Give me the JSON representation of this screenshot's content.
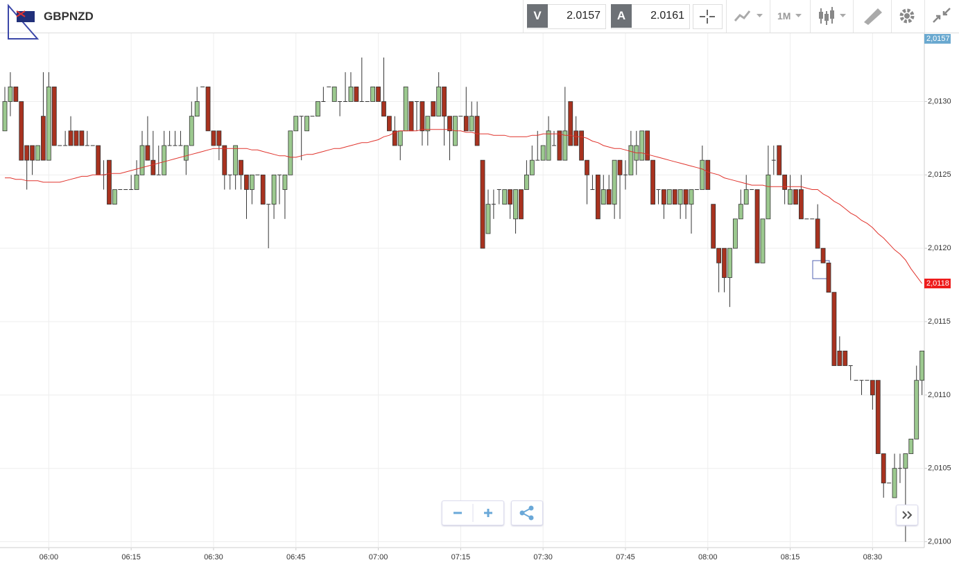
{
  "header": {
    "symbol": "GBPNZD",
    "bid_label": "V",
    "bid": "2.0157",
    "ask_label": "A",
    "ask": "2.0161",
    "timeframe": "1M"
  },
  "chart_data": {
    "type": "candlestick",
    "categories": [
      null,
      null,
      null,
      null,
      null,
      null,
      null,
      null,
      "06:00",
      null,
      null,
      null,
      null,
      null,
      null,
      null,
      null,
      null,
      null,
      null,
      null,
      null,
      null,
      "06:15",
      null,
      null,
      null,
      null,
      null,
      null,
      null,
      null,
      null,
      null,
      null,
      null,
      null,
      null,
      "06:30",
      null,
      null,
      null,
      null,
      null,
      null,
      null,
      null,
      null,
      null,
      null,
      null,
      null,
      null,
      "06:45",
      null,
      null,
      null,
      null,
      null,
      null,
      null,
      null,
      null,
      null,
      null,
      null,
      null,
      null,
      "07:00",
      null,
      null,
      null,
      null,
      null,
      null,
      null,
      null,
      null,
      null,
      null,
      null,
      null,
      null,
      "07:15",
      null,
      null,
      null,
      null,
      null,
      null,
      null,
      null,
      null,
      null,
      null,
      null,
      null,
      null,
      "07:30",
      null,
      null,
      null,
      null,
      null,
      null,
      null,
      null,
      null,
      null,
      null,
      null,
      null,
      null,
      "07:45",
      null,
      null,
      null,
      null,
      null,
      null,
      null,
      null,
      null,
      null,
      null,
      null,
      null,
      null,
      "08:00",
      null,
      null,
      null,
      null,
      null,
      null,
      null,
      null,
      null,
      null,
      null,
      null,
      null,
      null,
      "08:15",
      null,
      null,
      null,
      null,
      null,
      null,
      null,
      null,
      null,
      null,
      null,
      null,
      null,
      null,
      "08:30",
      null,
      null,
      null,
      null,
      null,
      null,
      null,
      null,
      null
    ],
    "ohlc": [
      [
        2.0128,
        2.0131,
        2.0128,
        2.013
      ],
      [
        2.013,
        2.0132,
        2.0129,
        2.0131
      ],
      [
        2.0131,
        2.0131,
        2.013,
        2.013
      ],
      [
        2.013,
        2.013,
        2.0126,
        2.0126
      ],
      [
        2.0127,
        2.0127,
        2.0124,
        2.0126
      ],
      [
        2.0127,
        2.0127,
        2.0125,
        2.0126
      ],
      [
        2.0126,
        2.0127,
        2.0126,
        2.0127
      ],
      [
        2.0129,
        2.0132,
        2.0126,
        2.0126
      ],
      [
        2.0126,
        2.0132,
        2.0126,
        2.0131
      ],
      [
        2.0131,
        2.0131,
        2.0127,
        2.0127
      ],
      [
        2.0127,
        2.0127,
        2.0127,
        2.0127
      ],
      [
        2.0127,
        2.0128,
        2.0127,
        2.0127
      ],
      [
        2.0128,
        2.0129,
        2.0127,
        2.0127
      ],
      [
        2.0128,
        2.0128,
        2.0127,
        2.0127
      ],
      [
        2.0128,
        2.0128,
        2.0127,
        2.0127
      ],
      [
        2.0127,
        2.0128,
        2.0127,
        2.0127
      ],
      [
        2.0127,
        2.0127,
        2.0127,
        2.0127
      ],
      [
        2.0127,
        2.0127,
        2.0125,
        2.0125
      ],
      [
        2.0125,
        2.0126,
        2.0124,
        2.0125
      ],
      [
        2.0126,
        2.0126,
        2.0123,
        2.0123
      ],
      [
        2.0123,
        2.0124,
        2.0123,
        2.0124
      ],
      [
        2.0124,
        2.0124,
        2.0124,
        2.0124
      ],
      [
        2.0124,
        2.0124,
        2.0124,
        2.0124
      ],
      [
        2.0124,
        2.0125,
        2.0124,
        2.0124
      ],
      [
        2.0124,
        2.0126,
        2.0124,
        2.0125
      ],
      [
        2.0125,
        2.0128,
        2.0125,
        2.0127
      ],
      [
        2.0127,
        2.0129,
        2.0126,
        2.0126
      ],
      [
        2.0126,
        2.0128,
        2.0125,
        2.0125
      ],
      [
        2.0125,
        2.0127,
        2.0125,
        2.0125
      ],
      [
        2.0125,
        2.0128,
        2.0125,
        2.0127
      ],
      [
        2.0127,
        2.0128,
        2.0127,
        2.0127
      ],
      [
        2.0127,
        2.0128,
        2.0127,
        2.0127
      ],
      [
        2.0127,
        2.0128,
        2.0127,
        2.0127
      ],
      [
        2.0126,
        2.0127,
        2.0125,
        2.0127
      ],
      [
        2.0127,
        2.013,
        2.0127,
        2.0129
      ],
      [
        2.0129,
        2.0131,
        2.0129,
        2.013
      ],
      [
        2.0131,
        2.0131,
        2.0131,
        2.0131
      ],
      [
        2.0131,
        2.0131,
        2.0128,
        2.0128
      ],
      [
        2.0128,
        2.0128,
        2.0127,
        2.0127
      ],
      [
        2.0128,
        2.0128,
        2.0126,
        2.0127
      ],
      [
        2.0127,
        2.0127,
        2.0124,
        2.0125
      ],
      [
        2.0125,
        2.0125,
        2.0124,
        2.0125
      ],
      [
        2.0125,
        2.0127,
        2.0124,
        2.0127
      ],
      [
        2.0126,
        2.0126,
        2.0124,
        2.0125
      ],
      [
        2.0125,
        2.0125,
        2.0122,
        2.0124
      ],
      [
        2.0124,
        2.0125,
        2.0123,
        2.0125
      ],
      [
        2.0125,
        2.0125,
        2.0125,
        2.0125
      ],
      [
        2.0125,
        2.0125,
        2.0123,
        2.0123
      ],
      [
        2.0123,
        2.0123,
        2.012,
        2.0123
      ],
      [
        2.0123,
        2.0125,
        2.0122,
        2.0125
      ],
      [
        2.0125,
        2.0125,
        2.0123,
        2.0125
      ],
      [
        2.0124,
        2.0125,
        2.0122,
        2.0125
      ],
      [
        2.0125,
        2.0128,
        2.0125,
        2.0128
      ],
      [
        2.0128,
        2.0129,
        2.0128,
        2.0129
      ],
      [
        2.0129,
        2.0129,
        2.0126,
        2.0129
      ],
      [
        2.0128,
        2.0129,
        2.0128,
        2.0129
      ],
      [
        2.0129,
        2.0129,
        2.0129,
        2.0129
      ],
      [
        2.0129,
        2.013,
        2.0129,
        2.013
      ],
      [
        2.013,
        2.0131,
        2.013,
        2.013
      ],
      [
        2.0131,
        2.0131,
        2.0131,
        2.0131
      ],
      [
        2.013,
        2.0131,
        2.013,
        2.0131
      ],
      [
        2.013,
        2.013,
        2.0129,
        2.013
      ],
      [
        2.013,
        2.0132,
        2.013,
        2.013
      ],
      [
        2.013,
        2.0132,
        2.013,
        2.0131
      ],
      [
        2.0131,
        2.0131,
        2.013,
        2.013
      ],
      [
        2.013,
        2.0133,
        2.013,
        2.013
      ],
      [
        2.013,
        2.013,
        2.013,
        2.013
      ],
      [
        2.013,
        2.0131,
        2.013,
        2.0131
      ],
      [
        2.0131,
        2.0131,
        2.013,
        2.013
      ],
      [
        2.013,
        2.0133,
        2.0129,
        2.0129
      ],
      [
        2.0129,
        2.0129,
        2.0128,
        2.0128
      ],
      [
        2.0128,
        2.0129,
        2.0127,
        2.0127
      ],
      [
        2.0127,
        2.0128,
        2.0126,
        2.0128
      ],
      [
        2.0128,
        2.0131,
        2.0128,
        2.0131
      ],
      [
        2.013,
        2.013,
        2.0128,
        2.0128
      ],
      [
        2.013,
        2.013,
        2.0128,
        2.013
      ],
      [
        2.013,
        2.013,
        2.0127,
        2.0128
      ],
      [
        2.0128,
        2.0129,
        2.0127,
        2.0129
      ],
      [
        2.013,
        2.013,
        2.0129,
        2.0129
      ],
      [
        2.0129,
        2.0132,
        2.0129,
        2.0131
      ],
      [
        2.0131,
        2.0131,
        2.0127,
        2.0129
      ],
      [
        2.0129,
        2.0129,
        2.0126,
        2.0128
      ],
      [
        2.0127,
        2.0129,
        2.0127,
        2.0129
      ],
      [
        2.0129,
        2.0129,
        2.0129,
        2.0129
      ],
      [
        2.0129,
        2.0131,
        2.0128,
        2.0128
      ],
      [
        2.0128,
        2.013,
        2.0128,
        2.0129
      ],
      [
        2.0129,
        2.013,
        2.0127,
        2.0127
      ],
      [
        2.0126,
        2.0126,
        2.012,
        2.012
      ],
      [
        2.0121,
        2.0124,
        2.0121,
        2.0123
      ],
      [
        2.0123,
        2.0124,
        2.0122,
        2.0123
      ],
      [
        2.0124,
        2.0124,
        2.0123,
        2.0124
      ],
      [
        2.0123,
        2.0124,
        2.0123,
        2.0124
      ],
      [
        2.0124,
        2.0124,
        2.0122,
        2.0123
      ],
      [
        2.0122,
        2.0124,
        2.0121,
        2.0124
      ],
      [
        2.0124,
        2.0124,
        2.0122,
        2.0122
      ],
      [
        2.0124,
        2.0126,
        2.0124,
        2.0125
      ],
      [
        2.0125,
        2.0127,
        2.0125,
        2.0126
      ],
      [
        2.0126,
        2.0128,
        2.0126,
        2.0126
      ],
      [
        2.0126,
        2.0127,
        2.0126,
        2.0127
      ],
      [
        2.0126,
        2.0129,
        2.0126,
        2.0128
      ],
      [
        2.0127,
        2.0128,
        2.0127,
        2.0127
      ],
      [
        2.0128,
        2.0128,
        2.0126,
        2.0126
      ],
      [
        2.0126,
        2.0131,
        2.0126,
        2.0128
      ],
      [
        2.013,
        2.013,
        2.0127,
        2.0127
      ],
      [
        2.0128,
        2.0129,
        2.0127,
        2.0127
      ],
      [
        2.0128,
        2.0128,
        2.0126,
        2.0126
      ],
      [
        2.0126,
        2.0126,
        2.0123,
        2.0125
      ],
      [
        2.0124,
        2.0125,
        2.0124,
        2.0124
      ],
      [
        2.0125,
        2.0125,
        2.0122,
        2.0122
      ],
      [
        2.0123,
        2.0125,
        2.0123,
        2.0124
      ],
      [
        2.0124,
        2.0125,
        2.0123,
        2.0123
      ],
      [
        2.0123,
        2.0126,
        2.0122,
        2.0126
      ],
      [
        2.0126,
        2.0126,
        2.0122,
        2.0125
      ],
      [
        2.0125,
        2.0126,
        2.0124,
        2.0125
      ],
      [
        2.0125,
        2.0128,
        2.0125,
        2.0127
      ],
      [
        2.0126,
        2.0128,
        2.0125,
        2.0127
      ],
      [
        2.0126,
        2.0128,
        2.0126,
        2.0128
      ],
      [
        2.0128,
        2.0128,
        2.0126,
        2.0126
      ],
      [
        2.0126,
        2.0126,
        2.0123,
        2.0123
      ],
      [
        2.0124,
        2.0124,
        2.0123,
        2.0124
      ],
      [
        2.0124,
        2.0124,
        2.0122,
        2.0123
      ],
      [
        2.0123,
        2.0124,
        2.0123,
        2.0124
      ],
      [
        2.0124,
        2.0124,
        2.0123,
        2.0123
      ],
      [
        2.0123,
        2.0124,
        2.0122,
        2.0124
      ],
      [
        2.0124,
        2.0124,
        2.0122,
        2.0123
      ],
      [
        2.0123,
        2.0124,
        2.0121,
        2.0124
      ],
      [
        2.0124,
        2.0124,
        2.0124,
        2.0124
      ],
      [
        2.0124,
        2.0127,
        2.0124,
        2.0126
      ],
      [
        2.0126,
        2.0126,
        2.0124,
        2.0124
      ],
      [
        2.0123,
        2.0123,
        2.012,
        2.012
      ],
      [
        2.012,
        2.012,
        2.0117,
        2.0119
      ],
      [
        2.012,
        2.012,
        2.0117,
        2.0118
      ],
      [
        2.0118,
        2.012,
        2.0116,
        2.012
      ],
      [
        2.012,
        2.0122,
        2.012,
        2.0122
      ],
      [
        2.0122,
        2.0124,
        2.0122,
        2.0123
      ],
      [
        2.0123,
        2.0125,
        2.0123,
        2.0124
      ],
      [
        2.0124,
        2.0124,
        2.0124,
        2.0124
      ],
      [
        2.0124,
        2.0124,
        2.0119,
        2.0119
      ],
      [
        2.0119,
        2.0122,
        2.0119,
        2.0122
      ],
      [
        2.0122,
        2.0127,
        2.0122,
        2.0125
      ],
      [
        2.0126,
        2.0127,
        2.0125,
        2.0126
      ],
      [
        2.0127,
        2.0127,
        2.0125,
        2.0125
      ],
      [
        2.0125,
        2.0125,
        2.0123,
        2.0124
      ],
      [
        2.0123,
        2.0125,
        2.0123,
        2.0124
      ],
      [
        2.0124,
        2.0124,
        2.0123,
        2.0123
      ],
      [
        2.0124,
        2.0125,
        2.0122,
        2.0122
      ],
      [
        2.0122,
        2.0122,
        2.0122,
        2.0122
      ],
      [
        2.0122,
        2.0122,
        2.0122,
        2.0122
      ],
      [
        2.0122,
        2.0123,
        2.012,
        2.012
      ],
      [
        2.012,
        2.012,
        2.0119,
        2.0119
      ],
      [
        2.0119,
        2.0119,
        2.0117,
        2.0117
      ],
      [
        2.0117,
        2.0117,
        2.0112,
        2.0112
      ],
      [
        2.0113,
        2.0114,
        2.0112,
        2.0112
      ],
      [
        2.0113,
        2.0113,
        2.0112,
        2.0112
      ],
      [
        2.0112,
        2.0112,
        2.0111,
        2.0112
      ],
      [
        2.0111,
        2.0111,
        2.0111,
        2.0111
      ],
      [
        2.0111,
        2.0111,
        2.011,
        2.0111
      ],
      [
        2.0111,
        2.0111,
        2.0111,
        2.0111
      ],
      [
        2.0111,
        2.0111,
        2.0109,
        2.011
      ],
      [
        2.0111,
        2.0111,
        2.0106,
        2.0106
      ],
      [
        2.0106,
        2.0106,
        2.0103,
        2.0104
      ],
      [
        2.0104,
        2.0104,
        2.0104,
        2.0104
      ],
      [
        2.0103,
        2.0106,
        2.0103,
        2.0105
      ],
      [
        2.0105,
        2.0106,
        2.0104,
        2.0105
      ],
      [
        2.0105,
        2.0106,
        2.01,
        2.0106
      ],
      [
        2.0106,
        2.0107,
        2.0106,
        2.0107
      ],
      [
        2.0107,
        2.0112,
        2.0107,
        2.0111
      ],
      [
        2.0111,
        2.0113,
        2.011,
        2.0113
      ]
    ],
    "up_color": "#9cc98f",
    "down_color": "#a8321f",
    "ma": {
      "color": "#e0322b",
      "values": [
        2.01248,
        2.01248,
        2.01247,
        2.01247,
        2.01246,
        2.01246,
        2.01246,
        2.01245,
        2.01245,
        2.01245,
        2.01245,
        2.01246,
        2.01247,
        2.01248,
        2.01249,
        2.01249,
        2.0125,
        2.0125,
        2.0125,
        2.01251,
        2.01251,
        2.01251,
        2.01252,
        2.01253,
        2.01254,
        2.01255,
        2.01256,
        2.01257,
        2.01258,
        2.01259,
        2.0126,
        2.01261,
        2.01262,
        2.01263,
        2.01264,
        2.01265,
        2.01266,
        2.01267,
        2.01268,
        2.01268,
        2.01268,
        2.01268,
        2.01268,
        2.01268,
        2.01268,
        2.01267,
        2.01267,
        2.01266,
        2.01265,
        2.01264,
        2.01263,
        2.01263,
        2.01262,
        2.01262,
        2.01263,
        2.01264,
        2.01264,
        2.01265,
        2.01266,
        2.01267,
        2.01268,
        2.01268,
        2.01269,
        2.0127,
        2.01271,
        2.01272,
        2.01272,
        2.01273,
        2.01274,
        2.01276,
        2.01277,
        2.01279,
        2.0128,
        2.0128,
        2.0128,
        2.0128,
        2.01281,
        2.01281,
        2.01281,
        2.01281,
        2.01281,
        2.01281,
        2.0128,
        2.0128,
        2.01279,
        2.01279,
        2.01278,
        2.01278,
        2.01278,
        2.01277,
        2.01277,
        2.01277,
        2.01276,
        2.01276,
        2.01276,
        2.01276,
        2.01277,
        2.01277,
        2.01278,
        2.01278,
        2.01278,
        2.01278,
        2.01277,
        2.01277,
        2.01276,
        2.01276,
        2.01275,
        2.01273,
        2.01272,
        2.0127,
        2.01269,
        2.01268,
        2.01268,
        2.01267,
        2.01266,
        2.01265,
        2.01265,
        2.01264,
        2.01263,
        2.01262,
        2.01261,
        2.0126,
        2.01259,
        2.01258,
        2.01257,
        2.01256,
        2.01255,
        2.01254,
        2.01252,
        2.01251,
        2.0125,
        2.01248,
        2.01247,
        2.01246,
        2.01245,
        2.01244,
        2.01243,
        2.01243,
        2.01243,
        2.01242,
        2.01242,
        2.01242,
        2.01242,
        2.01242,
        2.01242,
        2.01242,
        2.01241,
        2.0124,
        2.0124,
        2.01237,
        2.01235,
        2.01232,
        2.0123,
        2.01227,
        2.01224,
        2.01222,
        2.01219,
        2.01217,
        2.01214,
        2.0121,
        2.01207,
        2.01203,
        2.01199,
        2.01196,
        2.01192,
        2.01186,
        2.01181,
        2.01176
      ]
    },
    "ylim": [
      2.00996,
      2.01347
    ],
    "yticks": [
      {
        "value": 2.01,
        "label": "2,0100"
      },
      {
        "value": 2.0105,
        "label": "2,0105"
      },
      {
        "value": 2.011,
        "label": "2,0110"
      },
      {
        "value": 2.0115,
        "label": "2,0115"
      },
      {
        "value": 2.012,
        "label": "2,0120"
      },
      {
        "value": 2.0125,
        "label": "2,0125"
      },
      {
        "value": 2.013,
        "label": "2,0130"
      }
    ],
    "grid": true,
    "price_tags": [
      {
        "value": 2.01176,
        "label": "2,0118",
        "color": "#ee1c1c"
      }
    ],
    "top_tag": {
      "label": "2,0157",
      "color": "#6aa9d0"
    }
  }
}
